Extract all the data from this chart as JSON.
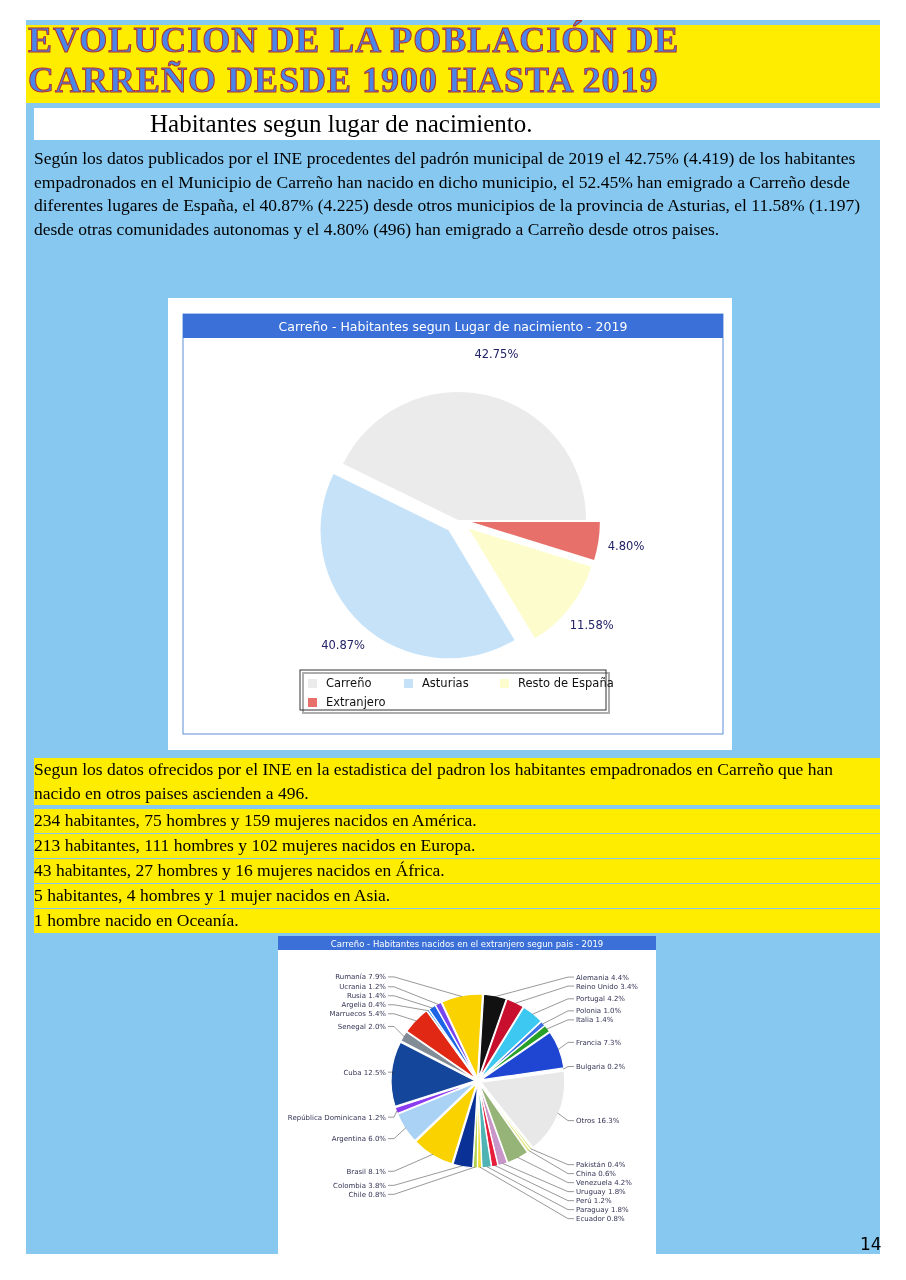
{
  "chart_data": [
    {
      "type": "pie",
      "title": "Carreño - Habitantes segun Lugar de nacimiento - 2019",
      "annotations": [
        "EVOLUCION DE LA POBLACIÓN DE CARREÑO DESDE 1900 HASTA 2019",
        "Habitantes segun lugar de nacimiento.",
        "Según los datos publicados por el INE procedentes del padrón municipal de 2019 el 42.75% (4.419) de los habitantes empadronados en el Municipio de Carreño han nacido en dicho municipio, el 52.45% han emigrado a Carreño desde diferentes lugares de España, el 40.87% (4.225) desde otros municipios de la provincia de Asturias, el 11.58% (1.197) desde otras comunidades autonomas y el 4.80% (496) han emigrado a Carreño desde otros paises."
      ],
      "categories": [
        "Carreño",
        "Asturias",
        "Resto de España",
        "Extranjero"
      ],
      "values": [
        42.75,
        40.87,
        11.58,
        4.8
      ],
      "value_labels": [
        "42.75%",
        "40.87%",
        "11.58%",
        "4.80%"
      ],
      "colors": [
        "#ebebeb",
        "#c6e2f8",
        "#fdfccc",
        "#e8706a"
      ],
      "legend": "bottom"
    },
    {
      "type": "pie",
      "title": "Carreño - Habitantes nacidos en el extranjero segun pais - 2019",
      "annotations": [
        "Segun los datos ofrecidos por el INE en la estadistica del padron los habitantes empadronados en Carreño que han nacido en otros paises ascienden a 496.",
        "234 habitantes, 75 hombres y 159 mujeres nacidos en América.",
        "213 habitantes, 111 hombres y 102 mujeres nacidos en Europa.",
        "43 habitantes, 27 hombres y 16 mujeres nacidos en África.",
        "5 habitantes, 4 hombres y 1 mujer nacidos en Asia.",
        "1 hombre nacido en Oceanía.",
        "14"
      ],
      "categories": [
        "Alemania",
        "Reino Unido",
        "Portugal",
        "Polonia",
        "Italia",
        "Francia",
        "Bulgaria",
        "Otros",
        "Pakistán",
        "China",
        "Venezuela",
        "Uruguay",
        "Perú",
        "Paraguay",
        "Ecuador",
        "Chile",
        "Colombia",
        "Brasil",
        "Argentina",
        "República Dominicana",
        "Cuba",
        "Senegal",
        "Marruecos",
        "Argelia",
        "Rusia",
        "Ucrania",
        "Rumanía"
      ],
      "values": [
        4.4,
        3.4,
        4.2,
        1.0,
        1.4,
        7.3,
        0.2,
        16.3,
        0.4,
        0.6,
        4.2,
        1.8,
        1.2,
        1.8,
        0.8,
        0.8,
        3.8,
        8.1,
        6.0,
        1.2,
        12.5,
        2.0,
        5.4,
        0.4,
        1.4,
        1.2,
        7.9
      ],
      "value_labels": [
        "4.4%",
        "3.4%",
        "4.2%",
        "1.0%",
        "1.4%",
        "7.3%",
        "0.2%",
        "16.3%",
        "0.4%",
        "0.6%",
        "4.2%",
        "1.8%",
        "1.2%",
        "1.8%",
        "0.8%",
        "0.8%",
        "3.8%",
        "8.1%",
        "6.0%",
        "1.2%",
        "12.5%",
        "2.0%",
        "5.4%",
        "0.4%",
        "1.4%",
        "1.2%",
        "7.9%"
      ],
      "colors": [
        "#111111",
        "#c8102e",
        "#3cc8f0",
        "#3c6ee6",
        "#28a028",
        "#1e46d2",
        "#1e5aa0",
        "#e8e8e8",
        "#c8dc64",
        "#e6e68c",
        "#96b478",
        "#c896c8",
        "#e61e3c",
        "#50b4b4",
        "#f0dc32",
        "#b4d250",
        "#0a3296",
        "#fad200",
        "#aad2f5",
        "#8c3cf0",
        "#14469b",
        "#828c96",
        "#e02814",
        "#2896dc",
        "#1e64e6",
        "#7846f0",
        "#fad200"
      ]
    }
  ]
}
